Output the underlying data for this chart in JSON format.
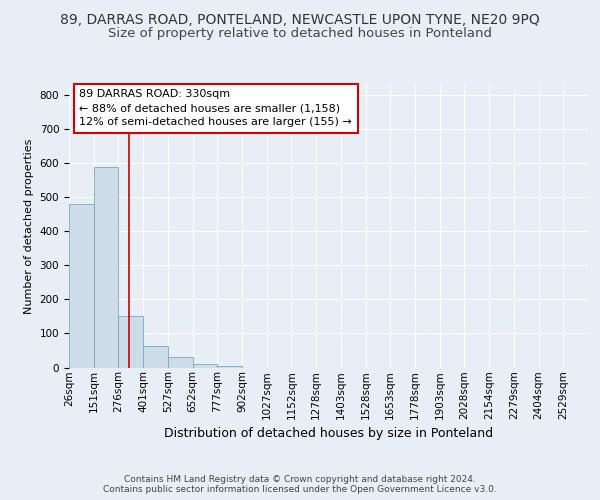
{
  "title": "89, DARRAS ROAD, PONTELAND, NEWCASTLE UPON TYNE, NE20 9PQ",
  "subtitle": "Size of property relative to detached houses in Ponteland",
  "xlabel": "Distribution of detached houses by size in Ponteland",
  "ylabel": "Number of detached properties",
  "bar_values": [
    480,
    590,
    150,
    63,
    30,
    10,
    5,
    0,
    0,
    0,
    0,
    0,
    0,
    0,
    0,
    0,
    0,
    0,
    0,
    0,
    0
  ],
  "categories": [
    "26sqm",
    "151sqm",
    "276sqm",
    "401sqm",
    "527sqm",
    "652sqm",
    "777sqm",
    "902sqm",
    "1027sqm",
    "1152sqm",
    "1278sqm",
    "1403sqm",
    "1528sqm",
    "1653sqm",
    "1778sqm",
    "1903sqm",
    "2028sqm",
    "2154sqm",
    "2279sqm",
    "2404sqm",
    "2529sqm"
  ],
  "bar_color": "#ccdce8",
  "bar_edge_color": "#7aaabb",
  "annotation_text": "89 DARRAS ROAD: 330sqm\n← 88% of detached houses are smaller (1,158)\n12% of semi-detached houses are larger (155) →",
  "annotation_box_facecolor": "#ffffff",
  "annotation_box_edgecolor": "#cc0000",
  "red_line_color": "#cc0000",
  "ylim": [
    0,
    830
  ],
  "yticks": [
    0,
    100,
    200,
    300,
    400,
    500,
    600,
    700,
    800
  ],
  "bg_color": "#e8eef5",
  "grid_color": "#ffffff",
  "footer1": "Contains HM Land Registry data © Crown copyright and database right 2024.",
  "footer2": "Contains public sector information licensed under the Open Government Licence v3.0.",
  "title_fontsize": 10,
  "subtitle_fontsize": 9.5,
  "ylabel_fontsize": 8,
  "xlabel_fontsize": 9,
  "tick_fontsize": 7.5,
  "footer_fontsize": 6.5,
  "annot_fontsize": 8
}
